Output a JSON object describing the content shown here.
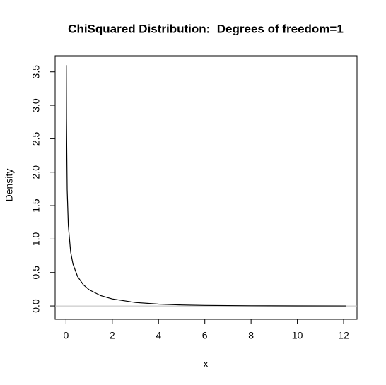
{
  "chart_data": {
    "type": "line",
    "title": "ChiSquared Distribution:  Degrees of freedom=1",
    "x_label": "x",
    "y_label": "Density",
    "x": [
      0.012,
      0.02,
      0.05,
      0.1,
      0.2,
      0.3,
      0.5,
      0.75,
      1,
      1.5,
      2,
      3,
      4,
      5,
      6,
      8,
      10,
      12.1
    ],
    "series": [
      {
        "color": "#000000",
        "values": [
          3.6,
          2.8,
          1.74,
          1.2,
          0.807,
          0.627,
          0.439,
          0.317,
          0.242,
          0.154,
          0.104,
          0.0514,
          0.027,
          0.0146,
          0.0081,
          0.0026,
          0.0008,
          0.00025
        ]
      }
    ],
    "reference_line": {
      "y": 0,
      "color": "#bebebe"
    },
    "xlim": [
      -0.47,
      12.58
    ],
    "ylim": [
      -0.2,
      3.74
    ],
    "xticks": [
      0,
      2,
      4,
      6,
      8,
      10,
      12
    ],
    "yticks": [
      {
        "value": 0,
        "label": "0.0"
      },
      {
        "value": 0.5,
        "label": "0.5"
      },
      {
        "value": 1,
        "label": "1.0"
      },
      {
        "value": 1.5,
        "label": "1.5"
      },
      {
        "value": 2,
        "label": "2.0"
      },
      {
        "value": 2.5,
        "label": "2.5"
      },
      {
        "value": 3,
        "label": "3.0"
      },
      {
        "value": 3.5,
        "label": "3.5"
      }
    ]
  }
}
